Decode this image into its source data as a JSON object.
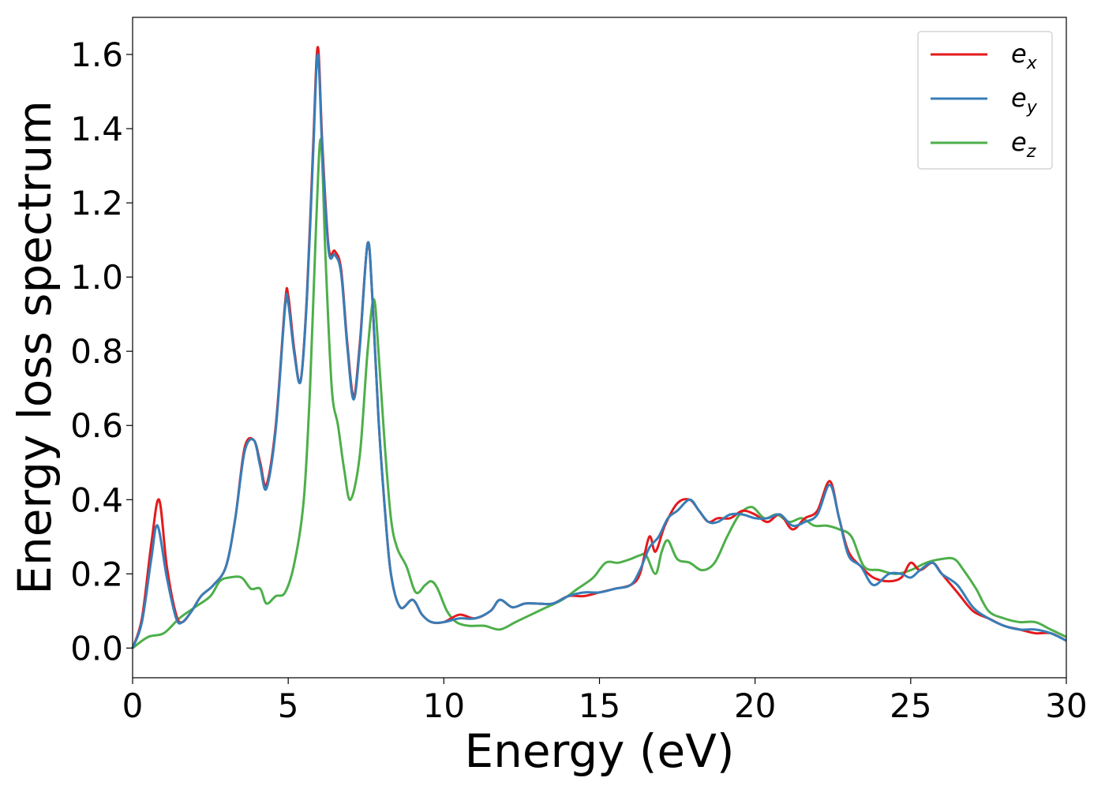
{
  "chart_data": {
    "type": "line",
    "title": "",
    "xlabel": "Energy (eV)",
    "ylabel": "Energy loss spectrum",
    "xlim": [
      0,
      30
    ],
    "ylim": [
      -0.08,
      1.7
    ],
    "xticks": [
      0,
      5,
      10,
      15,
      20,
      25,
      30
    ],
    "xtick_labels": [
      "0",
      "5",
      "10",
      "15",
      "20",
      "25",
      "30"
    ],
    "yticks": [
      0.0,
      0.2,
      0.4,
      0.6,
      0.8,
      1.0,
      1.2,
      1.4,
      1.6
    ],
    "ytick_labels": [
      "0.0",
      "0.2",
      "0.4",
      "0.6",
      "0.8",
      "1.0",
      "1.2",
      "1.4",
      "1.6"
    ],
    "grid": false,
    "legend_position": "top-right",
    "series": [
      {
        "name": "e",
        "subscript": "x",
        "color": "#e41a1c",
        "points": [
          [
            0,
            0.0
          ],
          [
            0.3,
            0.08
          ],
          [
            0.6,
            0.28
          ],
          [
            0.85,
            0.4
          ],
          [
            1.1,
            0.22
          ],
          [
            1.4,
            0.09
          ],
          [
            1.6,
            0.07
          ],
          [
            1.9,
            0.1
          ],
          [
            2.2,
            0.14
          ],
          [
            2.6,
            0.17
          ],
          [
            3.0,
            0.22
          ],
          [
            3.3,
            0.35
          ],
          [
            3.6,
            0.54
          ],
          [
            3.9,
            0.56
          ],
          [
            4.1,
            0.5
          ],
          [
            4.3,
            0.44
          ],
          [
            4.6,
            0.6
          ],
          [
            4.9,
            0.93
          ],
          [
            5.0,
            0.95
          ],
          [
            5.2,
            0.8
          ],
          [
            5.4,
            0.72
          ],
          [
            5.6,
            0.95
          ],
          [
            5.8,
            1.35
          ],
          [
            5.95,
            1.62
          ],
          [
            6.1,
            1.35
          ],
          [
            6.3,
            1.08
          ],
          [
            6.5,
            1.07
          ],
          [
            6.7,
            1.02
          ],
          [
            6.9,
            0.82
          ],
          [
            7.1,
            0.68
          ],
          [
            7.3,
            0.82
          ],
          [
            7.55,
            1.09
          ],
          [
            7.7,
            0.95
          ],
          [
            7.9,
            0.62
          ],
          [
            8.1,
            0.38
          ],
          [
            8.3,
            0.2
          ],
          [
            8.6,
            0.11
          ],
          [
            9.0,
            0.13
          ],
          [
            9.3,
            0.09
          ],
          [
            9.6,
            0.07
          ],
          [
            10.0,
            0.07
          ],
          [
            10.5,
            0.09
          ],
          [
            11.0,
            0.08
          ],
          [
            11.5,
            0.1
          ],
          [
            11.8,
            0.13
          ],
          [
            12.2,
            0.11
          ],
          [
            12.6,
            0.12
          ],
          [
            13.0,
            0.12
          ],
          [
            13.5,
            0.12
          ],
          [
            14.0,
            0.14
          ],
          [
            14.5,
            0.14
          ],
          [
            15.0,
            0.15
          ],
          [
            15.5,
            0.16
          ],
          [
            16.0,
            0.17
          ],
          [
            16.3,
            0.2
          ],
          [
            16.6,
            0.3
          ],
          [
            16.8,
            0.26
          ],
          [
            17.1,
            0.33
          ],
          [
            17.5,
            0.39
          ],
          [
            17.9,
            0.4
          ],
          [
            18.2,
            0.37
          ],
          [
            18.5,
            0.34
          ],
          [
            18.8,
            0.35
          ],
          [
            19.2,
            0.35
          ],
          [
            19.6,
            0.37
          ],
          [
            20.0,
            0.36
          ],
          [
            20.4,
            0.34
          ],
          [
            20.8,
            0.36
          ],
          [
            21.2,
            0.32
          ],
          [
            21.6,
            0.35
          ],
          [
            22.0,
            0.37
          ],
          [
            22.4,
            0.45
          ],
          [
            22.7,
            0.35
          ],
          [
            23.0,
            0.26
          ],
          [
            23.4,
            0.22
          ],
          [
            23.8,
            0.19
          ],
          [
            24.3,
            0.18
          ],
          [
            24.7,
            0.19
          ],
          [
            25.0,
            0.23
          ],
          [
            25.3,
            0.21
          ],
          [
            25.7,
            0.23
          ],
          [
            26.0,
            0.2
          ],
          [
            26.5,
            0.15
          ],
          [
            27.0,
            0.1
          ],
          [
            27.5,
            0.08
          ],
          [
            28.0,
            0.06
          ],
          [
            28.5,
            0.05
          ],
          [
            29.0,
            0.04
          ],
          [
            29.5,
            0.04
          ],
          [
            30.0,
            0.02
          ]
        ]
      },
      {
        "name": "e",
        "subscript": "y",
        "color": "#377eb8",
        "points": [
          [
            0,
            0.0
          ],
          [
            0.3,
            0.07
          ],
          [
            0.6,
            0.24
          ],
          [
            0.8,
            0.33
          ],
          [
            1.1,
            0.19
          ],
          [
            1.4,
            0.08
          ],
          [
            1.6,
            0.07
          ],
          [
            1.9,
            0.1
          ],
          [
            2.2,
            0.14
          ],
          [
            2.6,
            0.17
          ],
          [
            3.0,
            0.22
          ],
          [
            3.3,
            0.35
          ],
          [
            3.6,
            0.53
          ],
          [
            3.9,
            0.56
          ],
          [
            4.1,
            0.49
          ],
          [
            4.3,
            0.43
          ],
          [
            4.6,
            0.59
          ],
          [
            4.9,
            0.92
          ],
          [
            5.0,
            0.93
          ],
          [
            5.2,
            0.79
          ],
          [
            5.4,
            0.72
          ],
          [
            5.6,
            0.94
          ],
          [
            5.8,
            1.33
          ],
          [
            5.95,
            1.6
          ],
          [
            6.1,
            1.33
          ],
          [
            6.3,
            1.07
          ],
          [
            6.5,
            1.06
          ],
          [
            6.7,
            1.01
          ],
          [
            6.9,
            0.81
          ],
          [
            7.1,
            0.67
          ],
          [
            7.3,
            0.81
          ],
          [
            7.55,
            1.09
          ],
          [
            7.7,
            0.95
          ],
          [
            7.9,
            0.62
          ],
          [
            8.1,
            0.38
          ],
          [
            8.3,
            0.2
          ],
          [
            8.6,
            0.11
          ],
          [
            9.0,
            0.13
          ],
          [
            9.3,
            0.09
          ],
          [
            9.6,
            0.07
          ],
          [
            10.0,
            0.07
          ],
          [
            10.5,
            0.08
          ],
          [
            11.0,
            0.08
          ],
          [
            11.5,
            0.1
          ],
          [
            11.8,
            0.13
          ],
          [
            12.2,
            0.11
          ],
          [
            12.6,
            0.12
          ],
          [
            13.0,
            0.12
          ],
          [
            13.5,
            0.12
          ],
          [
            14.0,
            0.14
          ],
          [
            14.5,
            0.15
          ],
          [
            15.0,
            0.15
          ],
          [
            15.5,
            0.16
          ],
          [
            16.0,
            0.17
          ],
          [
            16.3,
            0.21
          ],
          [
            16.6,
            0.27
          ],
          [
            16.9,
            0.3
          ],
          [
            17.2,
            0.35
          ],
          [
            17.5,
            0.37
          ],
          [
            17.9,
            0.4
          ],
          [
            18.2,
            0.37
          ],
          [
            18.5,
            0.34
          ],
          [
            18.8,
            0.34
          ],
          [
            19.2,
            0.36
          ],
          [
            19.6,
            0.36
          ],
          [
            20.0,
            0.35
          ],
          [
            20.4,
            0.35
          ],
          [
            20.8,
            0.36
          ],
          [
            21.2,
            0.33
          ],
          [
            21.6,
            0.34
          ],
          [
            22.0,
            0.36
          ],
          [
            22.4,
            0.44
          ],
          [
            22.7,
            0.35
          ],
          [
            23.0,
            0.25
          ],
          [
            23.4,
            0.22
          ],
          [
            23.8,
            0.17
          ],
          [
            24.3,
            0.2
          ],
          [
            24.7,
            0.2
          ],
          [
            25.0,
            0.19
          ],
          [
            25.3,
            0.21
          ],
          [
            25.7,
            0.23
          ],
          [
            26.0,
            0.2
          ],
          [
            26.5,
            0.17
          ],
          [
            27.0,
            0.11
          ],
          [
            27.5,
            0.08
          ],
          [
            28.0,
            0.06
          ],
          [
            28.5,
            0.05
          ],
          [
            29.0,
            0.05
          ],
          [
            29.5,
            0.04
          ],
          [
            30.0,
            0.02
          ]
        ]
      },
      {
        "name": "e",
        "subscript": "z",
        "color": "#4daf4a",
        "points": [
          [
            0,
            0.0
          ],
          [
            0.5,
            0.03
          ],
          [
            1.0,
            0.04
          ],
          [
            1.5,
            0.08
          ],
          [
            2.0,
            0.11
          ],
          [
            2.5,
            0.14
          ],
          [
            2.8,
            0.18
          ],
          [
            3.1,
            0.19
          ],
          [
            3.5,
            0.19
          ],
          [
            3.8,
            0.16
          ],
          [
            4.1,
            0.16
          ],
          [
            4.3,
            0.12
          ],
          [
            4.6,
            0.14
          ],
          [
            4.9,
            0.15
          ],
          [
            5.2,
            0.23
          ],
          [
            5.5,
            0.4
          ],
          [
            5.7,
            0.7
          ],
          [
            5.9,
            1.15
          ],
          [
            6.05,
            1.37
          ],
          [
            6.2,
            1.05
          ],
          [
            6.4,
            0.7
          ],
          [
            6.6,
            0.6
          ],
          [
            6.8,
            0.48
          ],
          [
            7.0,
            0.4
          ],
          [
            7.3,
            0.52
          ],
          [
            7.55,
            0.8
          ],
          [
            7.75,
            0.94
          ],
          [
            7.9,
            0.8
          ],
          [
            8.1,
            0.55
          ],
          [
            8.3,
            0.35
          ],
          [
            8.5,
            0.27
          ],
          [
            8.8,
            0.22
          ],
          [
            9.1,
            0.15
          ],
          [
            9.4,
            0.17
          ],
          [
            9.6,
            0.18
          ],
          [
            9.8,
            0.16
          ],
          [
            10.1,
            0.1
          ],
          [
            10.4,
            0.07
          ],
          [
            10.8,
            0.06
          ],
          [
            11.3,
            0.06
          ],
          [
            11.8,
            0.05
          ],
          [
            12.3,
            0.07
          ],
          [
            12.8,
            0.09
          ],
          [
            13.3,
            0.11
          ],
          [
            13.8,
            0.13
          ],
          [
            14.3,
            0.16
          ],
          [
            14.8,
            0.19
          ],
          [
            15.2,
            0.23
          ],
          [
            15.6,
            0.23
          ],
          [
            16.0,
            0.24
          ],
          [
            16.3,
            0.25
          ],
          [
            16.5,
            0.25
          ],
          [
            16.8,
            0.2
          ],
          [
            17.0,
            0.26
          ],
          [
            17.2,
            0.29
          ],
          [
            17.5,
            0.24
          ],
          [
            17.9,
            0.23
          ],
          [
            18.3,
            0.21
          ],
          [
            18.7,
            0.23
          ],
          [
            19.1,
            0.3
          ],
          [
            19.5,
            0.36
          ],
          [
            19.9,
            0.38
          ],
          [
            20.3,
            0.35
          ],
          [
            20.7,
            0.36
          ],
          [
            21.1,
            0.34
          ],
          [
            21.5,
            0.35
          ],
          [
            21.9,
            0.33
          ],
          [
            22.3,
            0.33
          ],
          [
            22.7,
            0.32
          ],
          [
            23.1,
            0.3
          ],
          [
            23.5,
            0.22
          ],
          [
            24.0,
            0.21
          ],
          [
            24.5,
            0.2
          ],
          [
            25.0,
            0.21
          ],
          [
            25.5,
            0.23
          ],
          [
            26.0,
            0.24
          ],
          [
            26.4,
            0.24
          ],
          [
            26.7,
            0.21
          ],
          [
            27.1,
            0.16
          ],
          [
            27.5,
            0.1
          ],
          [
            28.0,
            0.08
          ],
          [
            28.5,
            0.07
          ],
          [
            29.0,
            0.07
          ],
          [
            29.5,
            0.05
          ],
          [
            30.0,
            0.03
          ]
        ]
      }
    ]
  }
}
